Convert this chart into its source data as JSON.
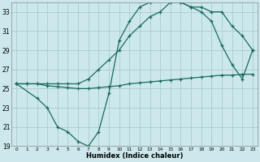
{
  "xlabel": "Humidex (Indice chaleur)",
  "background_color": "#cce8ec",
  "grid_color": "#aacccc",
  "line_color": "#1a6b5a",
  "xlim": [
    -0.5,
    23.5
  ],
  "ylim": [
    19,
    34
  ],
  "yticks": [
    19,
    21,
    23,
    25,
    27,
    29,
    31,
    33
  ],
  "xticks": [
    0,
    1,
    2,
    3,
    4,
    5,
    6,
    7,
    8,
    9,
    10,
    11,
    12,
    13,
    14,
    15,
    16,
    17,
    18,
    19,
    20,
    21,
    22,
    23
  ],
  "line1_x": [
    0,
    1,
    2,
    3,
    4,
    5,
    6,
    7,
    8,
    9,
    10,
    11,
    12,
    13,
    14,
    15,
    16,
    17,
    18,
    19,
    20,
    21,
    22,
    23
  ],
  "line1_y": [
    25.5,
    25.5,
    25.5,
    25.3,
    25.2,
    25.1,
    25.0,
    25.0,
    25.1,
    25.2,
    25.3,
    25.5,
    25.6,
    25.7,
    25.8,
    25.9,
    26.0,
    26.1,
    26.2,
    26.3,
    26.4,
    26.4,
    26.5,
    26.5
  ],
  "line2_x": [
    0,
    2,
    3,
    4,
    5,
    6,
    7,
    8,
    9,
    10,
    11,
    12,
    13,
    14,
    15,
    16,
    17,
    18,
    19,
    20,
    21,
    22,
    23
  ],
  "line2_y": [
    25.5,
    24.0,
    23.0,
    21.0,
    20.5,
    19.5,
    19.0,
    20.5,
    24.5,
    30.0,
    32.0,
    33.5,
    34.0,
    34.5,
    34.5,
    34.0,
    33.5,
    33.0,
    32.0,
    29.5,
    27.5,
    26.0,
    29.0
  ],
  "line3_x": [
    0,
    1,
    2,
    3,
    4,
    5,
    6,
    7,
    8,
    9,
    10,
    11,
    12,
    13,
    14,
    15,
    16,
    17,
    18,
    19,
    20,
    21,
    22,
    23
  ],
  "line3_y": [
    25.5,
    25.5,
    25.5,
    25.5,
    25.5,
    25.5,
    25.5,
    26.0,
    27.0,
    28.0,
    29.0,
    30.5,
    31.5,
    32.5,
    33.0,
    34.0,
    34.0,
    33.5,
    33.5,
    33.0,
    33.0,
    31.5,
    30.5,
    29.0
  ]
}
